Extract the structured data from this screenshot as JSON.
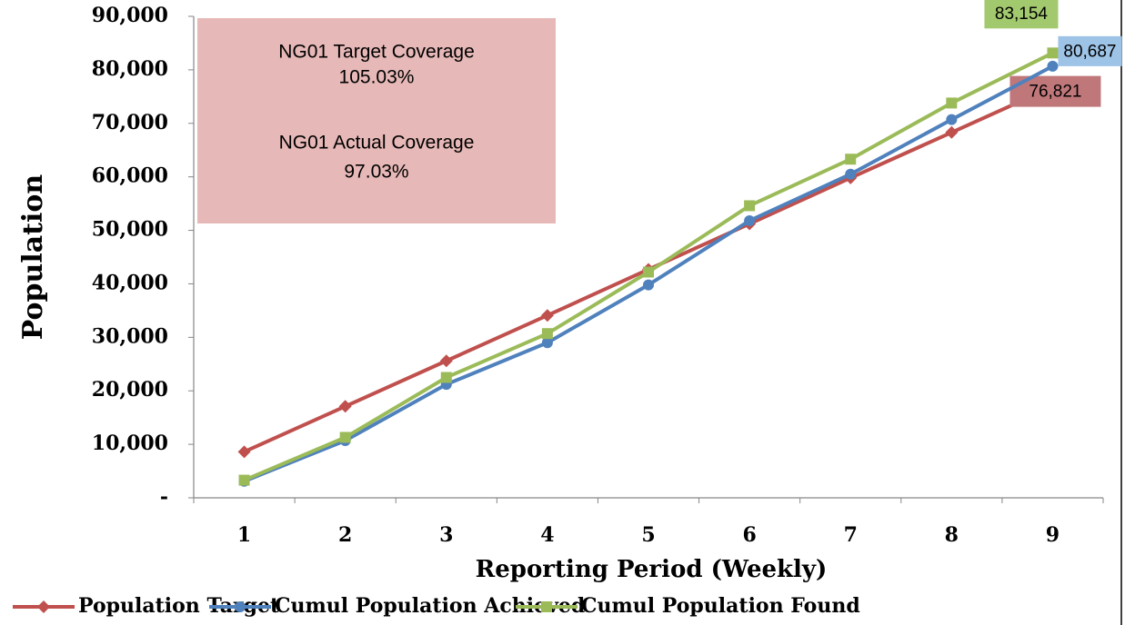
{
  "chart_data": {
    "type": "line",
    "xlabel": "Reporting Period (Weekly)",
    "ylabel": "Population",
    "categories": [
      "1",
      "2",
      "3",
      "4",
      "5",
      "6",
      "7",
      "8",
      "9"
    ],
    "series": [
      {
        "name": "Population Target",
        "color": "#c0504d",
        "marker": "diamond",
        "values": [
          8600,
          17100,
          25600,
          34100,
          42700,
          51200,
          59800,
          68300,
          76821
        ],
        "value_labels": [
          null,
          null,
          null,
          null,
          null,
          null,
          null,
          null,
          "76,821"
        ]
      },
      {
        "name": "Cumul Population Achieved",
        "color": "#4f81bd",
        "marker": "circle",
        "values": [
          3100,
          10700,
          21200,
          29000,
          39800,
          51800,
          60500,
          70700,
          80687
        ],
        "value_labels": [
          null,
          null,
          null,
          null,
          null,
          null,
          null,
          null,
          "80,687"
        ]
      },
      {
        "name": "Cumul Population Found",
        "color": "#9bbb59",
        "marker": "square",
        "values": [
          3300,
          11300,
          22500,
          30700,
          42200,
          54600,
          63300,
          73800,
          83154
        ],
        "value_labels": [
          null,
          null,
          null,
          null,
          null,
          null,
          null,
          null,
          "83,154"
        ]
      }
    ],
    "ylim": [
      0,
      90000
    ],
    "yticks": [
      {
        "value": 0,
        "label": "-"
      },
      {
        "value": 10000,
        "label": "10,000"
      },
      {
        "value": 20000,
        "label": "20,000"
      },
      {
        "value": 30000,
        "label": "30,000"
      },
      {
        "value": 40000,
        "label": "40,000"
      },
      {
        "value": 50000,
        "label": "50,000"
      },
      {
        "value": 60000,
        "label": "60,000"
      },
      {
        "value": 70000,
        "label": "70,000"
      },
      {
        "value": 80000,
        "label": "80,000"
      },
      {
        "value": 90000,
        "label": "90,000"
      }
    ],
    "annotations": [
      "NG01 Target Coverage",
      "105.03%",
      "NG01 Actual Coverage",
      "97.03%"
    ],
    "legend": "bottom"
  }
}
